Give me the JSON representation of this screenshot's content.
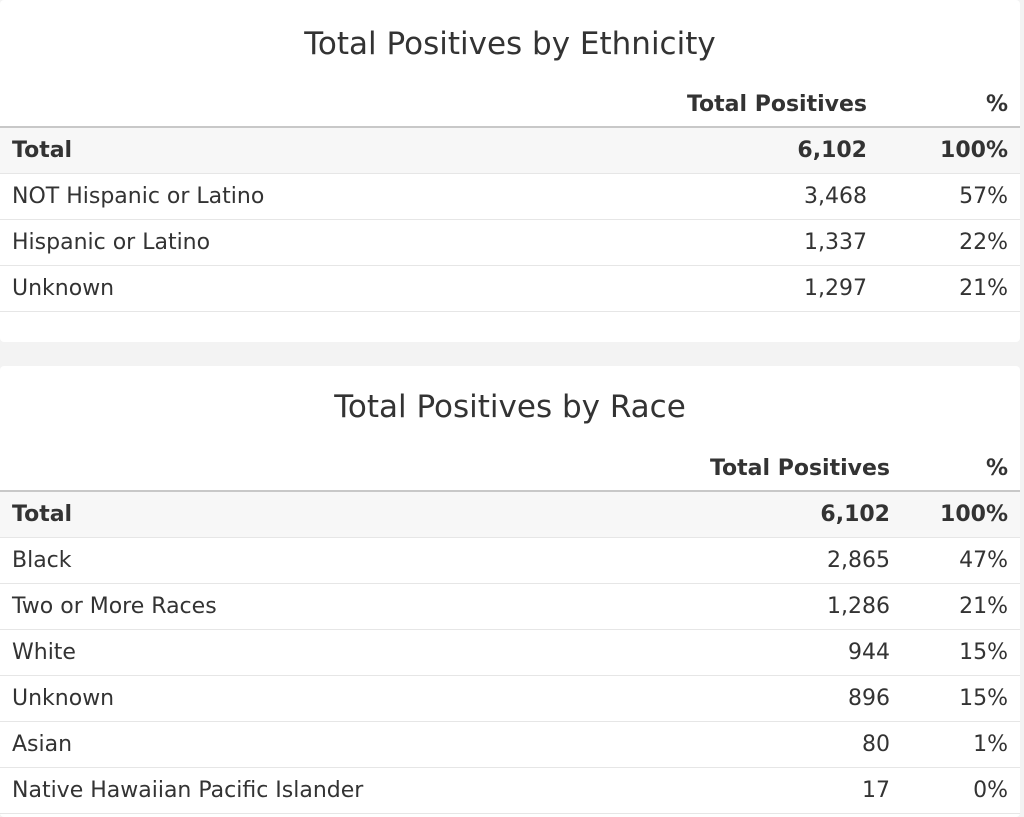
{
  "ethnicity": {
    "title": "Total Positives by Ethnicity",
    "header": {
      "label": "",
      "count": "Total Positives",
      "pct": "%"
    },
    "rows": [
      {
        "label": "Total",
        "count": "6,102",
        "pct": "100%"
      },
      {
        "label": "NOT Hispanic or Latino",
        "count": "3,468",
        "pct": "57%"
      },
      {
        "label": "Hispanic or Latino",
        "count": "1,337",
        "pct": "22%"
      },
      {
        "label": "Unknown",
        "count": "1,297",
        "pct": "21%"
      }
    ]
  },
  "race": {
    "title": "Total Positives by Race",
    "header": {
      "label": "",
      "count": "Total Positives",
      "pct": "%"
    },
    "rows": [
      {
        "label": "Total",
        "count": "6,102",
        "pct": "100%"
      },
      {
        "label": "Black",
        "count": "2,865",
        "pct": "47%"
      },
      {
        "label": "Two or More Races",
        "count": "1,286",
        "pct": "21%"
      },
      {
        "label": "White",
        "count": "944",
        "pct": "15%"
      },
      {
        "label": "Unknown",
        "count": "896",
        "pct": "15%"
      },
      {
        "label": "Asian",
        "count": "80",
        "pct": "1%"
      },
      {
        "label": "Native Hawaiian Pacific Islander",
        "count": "17",
        "pct": "0%"
      }
    ]
  }
}
